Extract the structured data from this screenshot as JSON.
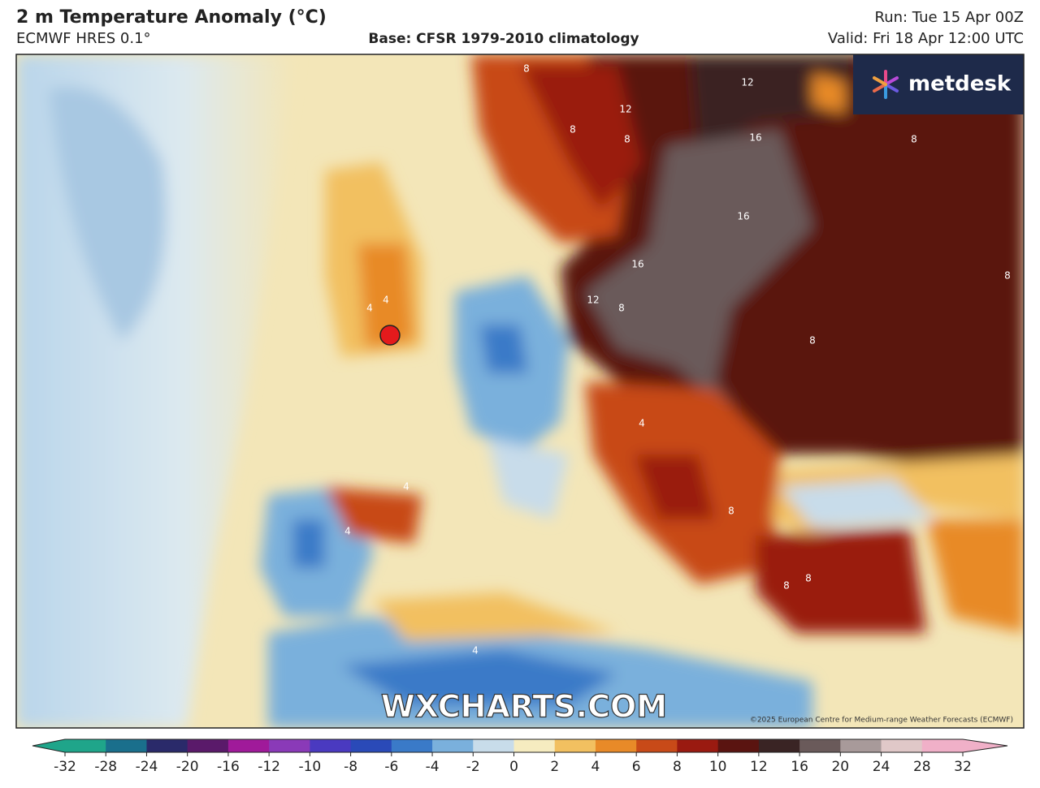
{
  "header": {
    "title": "2 m Temperature Anomaly (°C)",
    "model": "ECMWF HRES 0.1°",
    "base": "Base: CFSR 1979-2010 climatology",
    "run": "Run: Tue 15 Apr 00Z",
    "valid": "Valid: Fri 18 Apr 12:00 UTC"
  },
  "logo": "metdesk",
  "watermark": "WXCHARTS.COM",
  "copyright": "©2025 European Centre for Medium-range Weather Forecasts (ECMWF)",
  "contour_labels": [
    12,
    8,
    8,
    12,
    8,
    16,
    16,
    16,
    12,
    8,
    4,
    4,
    8,
    8,
    8,
    4,
    8,
    8,
    8,
    4,
    4,
    4
  ],
  "colorbar": {
    "ticks": [
      -32,
      -28,
      -24,
      -20,
      -16,
      -12,
      -10,
      -8,
      -6,
      -4,
      -2,
      0,
      2,
      4,
      6,
      8,
      10,
      12,
      16,
      20,
      24,
      28,
      32
    ],
    "colors": [
      "#1fa58a",
      "#1a6f8c",
      "#2a2a6a",
      "#5a1a6a",
      "#a01a9a",
      "#8a3ab8",
      "#4a3ac0",
      "#2a4ab8",
      "#3a7ac8",
      "#7ab0dc",
      "#c8dcea",
      "#f6ecc0",
      "#f2c060",
      "#e88a28",
      "#c84a18",
      "#9a1a10",
      "#5a1410",
      "#3a2424",
      "#6a5a5a",
      "#a89a9a",
      "#e0c8c8",
      "#f0b0c8"
    ]
  }
}
